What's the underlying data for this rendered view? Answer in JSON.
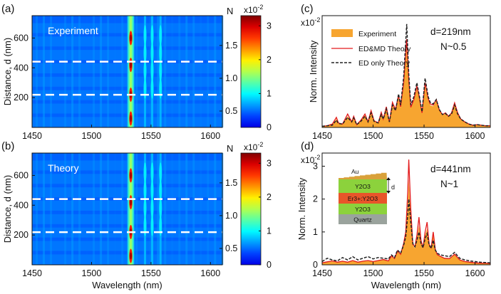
{
  "colors": {
    "experiment_fill": "#f7a530",
    "edmd_line": "#e31a1c",
    "ed_line": "#222222",
    "dashed_guides": "#ffffff",
    "panel_text": "#ffffff",
    "inset_au": "#d9a13a",
    "inset_y2o3": "#8cd23c",
    "inset_er": "#e8552a",
    "inset_quartz": "#9aa39d"
  },
  "chart_data": [
    {
      "id": "a",
      "type": "heatmap",
      "panel_label": "(a)",
      "inset_title": "Experiment",
      "xlabel": "",
      "ylabel": "Distance, d (nm)",
      "xlim": [
        1450,
        1610
      ],
      "ylim": [
        0,
        750
      ],
      "xticks": [
        1450,
        1500,
        1550,
        1600
      ],
      "yticks": [
        200,
        400,
        600
      ],
      "n_axis_label": "N",
      "n_ticks": [
        {
          "d": 110,
          "label": "0.5"
        },
        {
          "d": 330,
          "label": "1.0"
        },
        {
          "d": 550,
          "label": "1.5"
        }
      ],
      "guide_lines_d": [
        219,
        441
      ],
      "colorbar": {
        "min": 0,
        "max": 3.3,
        "ticks": [
          "0",
          "1",
          "2",
          "3"
        ],
        "tick_values": [
          0,
          1,
          2,
          3
        ],
        "exponent": "x10-2"
      },
      "bright_lines": [
        {
          "wavelength": 1533,
          "level": "strong",
          "hotspots_d": [
            60,
            220,
            420,
            600
          ]
        },
        {
          "wavelength": 1545,
          "level": "weak"
        },
        {
          "wavelength": 1551,
          "level": "weak"
        },
        {
          "wavelength": 1558,
          "level": "weak"
        }
      ]
    },
    {
      "id": "b",
      "type": "heatmap",
      "panel_label": "(b)",
      "inset_title": "Theory",
      "xlabel": "Wavelength (nm)",
      "ylabel": "Distance, d (nm)",
      "xlim": [
        1450,
        1610
      ],
      "ylim": [
        0,
        750
      ],
      "xticks": [
        1450,
        1500,
        1550,
        1600
      ],
      "yticks": [
        200,
        400,
        600
      ],
      "n_axis_label": "N",
      "n_ticks": [
        {
          "d": 110,
          "label": "0.5"
        },
        {
          "d": 330,
          "label": "1.0"
        },
        {
          "d": 550,
          "label": "1.5"
        }
      ],
      "guide_lines_d": [
        219,
        441
      ],
      "colorbar": {
        "min": 0,
        "max": 3.3,
        "ticks": [
          "0",
          "1",
          "2",
          "3"
        ],
        "tick_values": [
          0,
          1,
          2,
          3
        ],
        "exponent": "x10-2"
      },
      "bright_lines": [
        {
          "wavelength": 1533,
          "level": "strong",
          "hotspots_d": [
            60,
            220,
            420,
            600
          ]
        },
        {
          "wavelength": 1545,
          "level": "weak"
        },
        {
          "wavelength": 1551,
          "level": "weak"
        },
        {
          "wavelength": 1558,
          "level": "weak"
        }
      ]
    },
    {
      "id": "c",
      "type": "area",
      "panel_label": "(c)",
      "exponent": "x10-2",
      "xlabel": "",
      "ylabel": "Norm. Intensity",
      "xlim": [
        1450,
        1615
      ],
      "ylim": [
        0,
        2.0
      ],
      "xticks": [
        1450,
        1500,
        1550,
        1600
      ],
      "annotation": {
        "line1": "d=219nm",
        "line2": "N~0.5"
      },
      "legend": [
        "Experiment",
        "ED&MD Theory",
        "ED only Theory"
      ],
      "series": [
        {
          "name": "Experiment",
          "x": [
            1450,
            1455,
            1460,
            1464,
            1466,
            1470,
            1475,
            1479,
            1481,
            1484,
            1488,
            1492,
            1495,
            1498,
            1501,
            1505,
            1508,
            1510,
            1513,
            1516,
            1519,
            1522,
            1525,
            1527,
            1530,
            1533,
            1535,
            1537,
            1540,
            1543,
            1545,
            1548,
            1551,
            1554,
            1556,
            1559,
            1562,
            1565,
            1568,
            1571,
            1574,
            1577,
            1580,
            1583,
            1586,
            1590,
            1594,
            1598,
            1602,
            1606,
            1610,
            1615
          ],
          "values": [
            0.02,
            0.03,
            0.05,
            0.15,
            0.08,
            0.06,
            0.2,
            0.1,
            0.18,
            0.05,
            0.12,
            0.22,
            0.1,
            0.28,
            0.12,
            0.08,
            0.25,
            0.15,
            0.35,
            0.1,
            0.42,
            0.3,
            0.55,
            0.35,
            0.75,
            1.45,
            0.8,
            0.35,
            0.48,
            0.7,
            0.55,
            0.25,
            0.75,
            0.5,
            0.4,
            0.38,
            0.48,
            0.3,
            0.22,
            0.25,
            0.2,
            0.25,
            0.42,
            0.25,
            0.15,
            0.1,
            0.06,
            0.04,
            0.05,
            0.04,
            0.03,
            0.03
          ]
        },
        {
          "name": "ED&MD Theory",
          "x": [
            1450,
            1455,
            1460,
            1464,
            1466,
            1470,
            1475,
            1479,
            1481,
            1484,
            1488,
            1492,
            1495,
            1498,
            1501,
            1505,
            1508,
            1510,
            1513,
            1516,
            1519,
            1522,
            1525,
            1527,
            1530,
            1533,
            1535,
            1537,
            1540,
            1543,
            1545,
            1548,
            1551,
            1554,
            1556,
            1559,
            1562,
            1565,
            1568,
            1571,
            1574,
            1577,
            1580,
            1583,
            1586,
            1590,
            1594,
            1598,
            1602,
            1606,
            1610,
            1615
          ],
          "values": [
            0.02,
            0.03,
            0.06,
            0.18,
            0.08,
            0.06,
            0.24,
            0.1,
            0.2,
            0.05,
            0.13,
            0.24,
            0.1,
            0.3,
            0.12,
            0.08,
            0.27,
            0.15,
            0.37,
            0.1,
            0.45,
            0.32,
            0.58,
            0.37,
            0.8,
            1.58,
            0.85,
            0.36,
            0.5,
            0.74,
            0.57,
            0.26,
            0.8,
            0.52,
            0.42,
            0.4,
            0.5,
            0.31,
            0.23,
            0.26,
            0.2,
            0.26,
            0.44,
            0.26,
            0.15,
            0.1,
            0.06,
            0.04,
            0.05,
            0.04,
            0.03,
            0.03
          ]
        },
        {
          "name": "ED only Theory",
          "x": [
            1450,
            1455,
            1460,
            1464,
            1466,
            1470,
            1475,
            1479,
            1481,
            1484,
            1488,
            1492,
            1495,
            1498,
            1501,
            1505,
            1508,
            1510,
            1513,
            1516,
            1519,
            1522,
            1525,
            1527,
            1530,
            1533,
            1535,
            1537,
            1540,
            1543,
            1545,
            1548,
            1551,
            1554,
            1556,
            1559,
            1562,
            1565,
            1568,
            1571,
            1574,
            1577,
            1580,
            1583,
            1586,
            1590,
            1594,
            1598,
            1602,
            1606,
            1610,
            1615
          ],
          "values": [
            0.02,
            0.03,
            0.04,
            0.13,
            0.07,
            0.06,
            0.18,
            0.1,
            0.17,
            0.05,
            0.11,
            0.2,
            0.1,
            0.26,
            0.11,
            0.08,
            0.23,
            0.15,
            0.33,
            0.1,
            0.4,
            0.3,
            0.6,
            0.4,
            0.9,
            1.85,
            0.95,
            0.4,
            0.55,
            0.8,
            0.6,
            0.28,
            0.88,
            0.55,
            0.45,
            0.42,
            0.5,
            0.32,
            0.23,
            0.25,
            0.2,
            0.24,
            0.4,
            0.24,
            0.15,
            0.1,
            0.06,
            0.04,
            0.05,
            0.04,
            0.03,
            0.03
          ]
        }
      ]
    },
    {
      "id": "d",
      "type": "area",
      "panel_label": "(d)",
      "exponent": "x10-2",
      "xlabel": "Wavelength (nm)",
      "ylabel": "Norm. Intensity",
      "xlim": [
        1450,
        1615
      ],
      "ylim": [
        0,
        3.4
      ],
      "xticks": [
        1450,
        1500,
        1550,
        1600
      ],
      "yticks": [
        0,
        1,
        2,
        3
      ],
      "annotation": {
        "line1": "d=441nm",
        "line2": "N~1"
      },
      "inset_layers": [
        "Au",
        "Y2O3",
        "Er3+:Y2O3",
        "Y2O3",
        "Quartz"
      ],
      "inset_dim_label": "d",
      "series": [
        {
          "name": "Experiment",
          "x": [
            1450,
            1455,
            1460,
            1465,
            1470,
            1475,
            1480,
            1485,
            1490,
            1495,
            1500,
            1505,
            1510,
            1515,
            1518,
            1521,
            1524,
            1527,
            1530,
            1532,
            1534,
            1535,
            1537,
            1539,
            1541,
            1543,
            1545,
            1547,
            1549,
            1551,
            1553,
            1555,
            1557,
            1559,
            1561,
            1563,
            1566,
            1570,
            1575,
            1580,
            1585,
            1590,
            1595,
            1600,
            1605,
            1610,
            1615
          ],
          "values": [
            0.05,
            0.08,
            0.1,
            0.07,
            0.1,
            0.08,
            0.12,
            0.08,
            0.1,
            0.12,
            0.1,
            0.12,
            0.15,
            0.12,
            0.25,
            0.18,
            0.4,
            0.3,
            0.6,
            0.9,
            1.8,
            2.6,
            1.5,
            0.6,
            0.5,
            0.8,
            1.2,
            0.7,
            0.5,
            0.9,
            1.1,
            0.6,
            0.5,
            0.9,
            0.45,
            0.3,
            0.25,
            0.2,
            0.18,
            0.3,
            0.15,
            0.1,
            0.08,
            0.06,
            0.05,
            0.05,
            0.04
          ]
        },
        {
          "name": "ED&MD Theory",
          "x": [
            1450,
            1455,
            1460,
            1465,
            1470,
            1475,
            1480,
            1485,
            1490,
            1495,
            1500,
            1505,
            1510,
            1515,
            1518,
            1521,
            1524,
            1527,
            1530,
            1532,
            1534,
            1535,
            1537,
            1539,
            1541,
            1543,
            1545,
            1547,
            1549,
            1551,
            1553,
            1555,
            1557,
            1559,
            1561,
            1563,
            1566,
            1570,
            1575,
            1580,
            1585,
            1590,
            1595,
            1600,
            1605,
            1610,
            1615
          ],
          "values": [
            0.06,
            0.09,
            0.12,
            0.08,
            0.11,
            0.08,
            0.13,
            0.08,
            0.11,
            0.13,
            0.1,
            0.13,
            0.16,
            0.12,
            0.27,
            0.19,
            0.42,
            0.32,
            0.65,
            1.0,
            2.2,
            3.2,
            1.7,
            0.62,
            0.55,
            0.9,
            1.45,
            0.75,
            0.52,
            1.0,
            1.3,
            0.62,
            0.52,
            1.0,
            0.47,
            0.31,
            0.26,
            0.2,
            0.19,
            0.32,
            0.15,
            0.1,
            0.08,
            0.06,
            0.05,
            0.05,
            0.04
          ]
        },
        {
          "name": "ED only Theory",
          "x": [
            1450,
            1455,
            1460,
            1465,
            1470,
            1475,
            1480,
            1485,
            1490,
            1495,
            1500,
            1505,
            1510,
            1515,
            1518,
            1521,
            1524,
            1527,
            1530,
            1532,
            1534,
            1535,
            1537,
            1539,
            1541,
            1543,
            1545,
            1547,
            1549,
            1551,
            1553,
            1555,
            1557,
            1559,
            1561,
            1563,
            1566,
            1570,
            1575,
            1580,
            1585,
            1590,
            1595,
            1600,
            1605,
            1610,
            1615
          ],
          "values": [
            0.1,
            0.2,
            0.15,
            0.12,
            0.22,
            0.15,
            0.25,
            0.15,
            0.2,
            0.25,
            0.18,
            0.22,
            0.2,
            0.18,
            0.3,
            0.22,
            0.45,
            0.35,
            0.6,
            0.85,
            1.5,
            2.0,
            1.3,
            0.65,
            0.55,
            0.75,
            1.0,
            0.65,
            0.52,
            0.8,
            0.95,
            0.6,
            0.5,
            0.75,
            0.45,
            0.35,
            0.3,
            0.28,
            0.25,
            0.38,
            0.2,
            0.15,
            0.12,
            0.1,
            0.08,
            0.07,
            0.06
          ]
        }
      ]
    }
  ]
}
